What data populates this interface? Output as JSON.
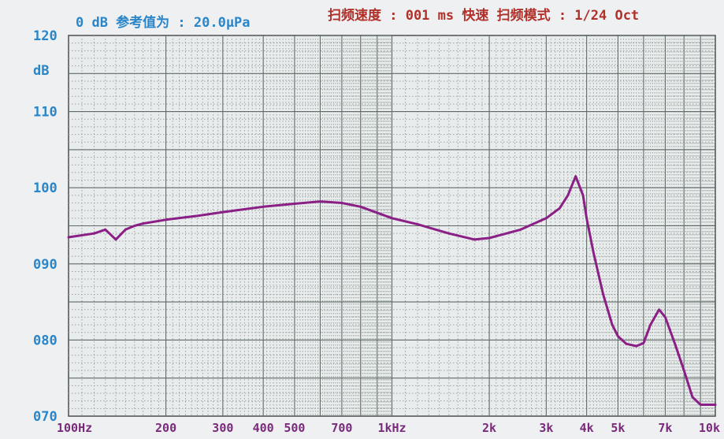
{
  "header": {
    "left": "0 dB 参考值为 : 20.0µPa",
    "right": "扫频速度 : 001 ms 快速  扫频模式 : 1/24 Oct"
  },
  "chart_data": {
    "type": "line",
    "x_scale": "log",
    "xlim": [
      100,
      10000
    ],
    "ylim": [
      70,
      120
    ],
    "y_unit": "dB",
    "y_ticks": [
      {
        "value": 120,
        "label": "120"
      },
      {
        "value": 110,
        "label": "110"
      },
      {
        "value": 100,
        "label": "100"
      },
      {
        "value": 90,
        "label": "090"
      },
      {
        "value": 80,
        "label": "080"
      },
      {
        "value": 70,
        "label": "070"
      }
    ],
    "x_ticks": [
      {
        "value": 100,
        "label": "100Hz"
      },
      {
        "value": 200,
        "label": "200"
      },
      {
        "value": 300,
        "label": "300"
      },
      {
        "value": 400,
        "label": "400"
      },
      {
        "value": 500,
        "label": "500"
      },
      {
        "value": 700,
        "label": "700"
      },
      {
        "value": 1000,
        "label": "1kHz"
      },
      {
        "value": 2000,
        "label": "2k"
      },
      {
        "value": 3000,
        "label": "3k"
      },
      {
        "value": 4000,
        "label": "4k"
      },
      {
        "value": 5000,
        "label": "5k"
      },
      {
        "value": 7000,
        "label": "7k"
      },
      {
        "value": 10000,
        "label": "10k"
      }
    ],
    "grid": true,
    "series": [
      {
        "color": "#8a1f86",
        "x": [
          100,
          120,
          130,
          140,
          150,
          160,
          170,
          200,
          250,
          300,
          400,
          500,
          600,
          700,
          800,
          1000,
          1200,
          1500,
          1800,
          2000,
          2500,
          3000,
          3300,
          3500,
          3700,
          3900,
          4000,
          4200,
          4500,
          4800,
          5000,
          5300,
          5700,
          6000,
          6300,
          6700,
          7000,
          7500,
          8000,
          8500,
          9000,
          10000
        ],
        "y": [
          93.5,
          94.0,
          94.5,
          93.2,
          94.5,
          95.0,
          95.3,
          95.8,
          96.3,
          96.8,
          97.5,
          97.9,
          98.2,
          98.0,
          97.5,
          96.0,
          95.2,
          94.0,
          93.2,
          93.4,
          94.5,
          96.0,
          97.3,
          99.0,
          101.5,
          99.0,
          96.0,
          91.5,
          86.0,
          82.0,
          80.5,
          79.5,
          79.2,
          79.6,
          82.0,
          84.0,
          83.0,
          79.5,
          76.0,
          72.5,
          71.5,
          71.5
        ]
      }
    ]
  }
}
